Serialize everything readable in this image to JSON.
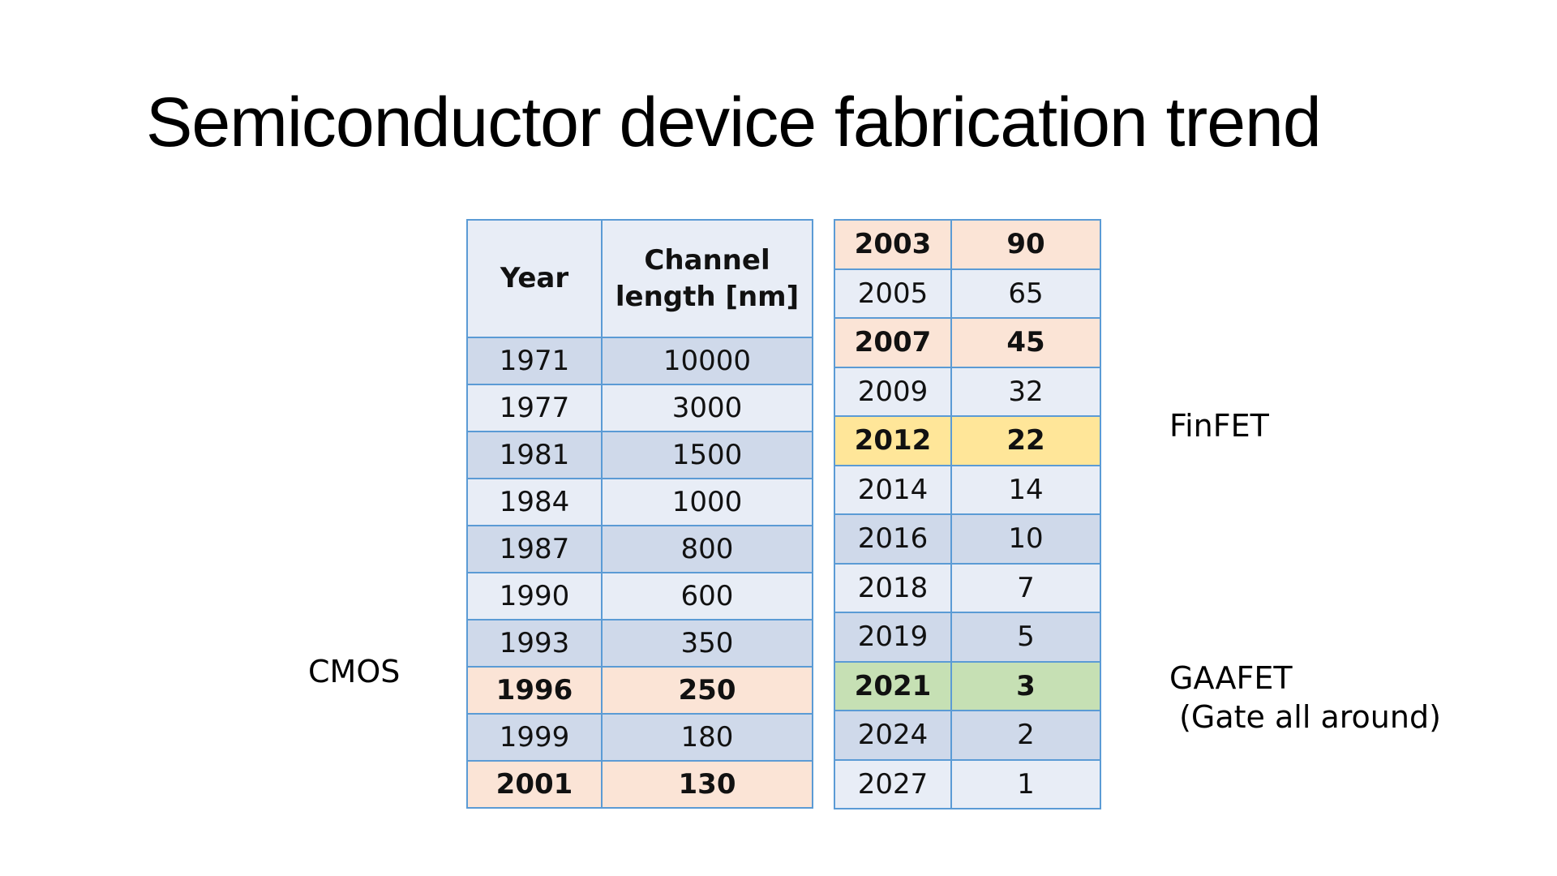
{
  "title": "Semiconductor device fabrication trend",
  "left_table": {
    "headers": [
      "Year",
      "Channel length [nm]"
    ],
    "rows": [
      {
        "year": "1971",
        "length": "10000",
        "highlight": "none"
      },
      {
        "year": "1977",
        "length": "3000",
        "highlight": "none"
      },
      {
        "year": "1981",
        "length": "1500",
        "highlight": "none"
      },
      {
        "year": "1984",
        "length": "1000",
        "highlight": "none"
      },
      {
        "year": "1987",
        "length": "800",
        "highlight": "none"
      },
      {
        "year": "1990",
        "length": "600",
        "highlight": "none"
      },
      {
        "year": "1993",
        "length": "350",
        "highlight": "none"
      },
      {
        "year": "1996",
        "length": "250",
        "highlight": "peach"
      },
      {
        "year": "1999",
        "length": "180",
        "highlight": "none"
      },
      {
        "year": "2001",
        "length": "130",
        "highlight": "peach"
      }
    ]
  },
  "right_table": {
    "rows": [
      {
        "year": "2003",
        "length": "90",
        "highlight": "peach"
      },
      {
        "year": "2005",
        "length": "65",
        "highlight": "none"
      },
      {
        "year": "2007",
        "length": "45",
        "highlight": "peach"
      },
      {
        "year": "2009",
        "length": "32",
        "highlight": "none"
      },
      {
        "year": "2012",
        "length": "22",
        "highlight": "yellow"
      },
      {
        "year": "2014",
        "length": "14",
        "highlight": "none"
      },
      {
        "year": "2016",
        "length": "10",
        "highlight": "none"
      },
      {
        "year": "2018",
        "length": "7",
        "highlight": "none"
      },
      {
        "year": "2019",
        "length": "5",
        "highlight": "none"
      },
      {
        "year": "2021",
        "length": "3",
        "highlight": "green"
      },
      {
        "year": "2024",
        "length": "2",
        "highlight": "none"
      },
      {
        "year": "2027",
        "length": "1",
        "highlight": "none"
      }
    ]
  },
  "labels": {
    "cmos": "CMOS",
    "finfet": "FinFET",
    "gaafet_line1": "GAAFET",
    "gaafet_line2": " (Gate all around)"
  },
  "colors": {
    "border": "#5b9bd5",
    "row_dark": "#cfd9ea",
    "row_light": "#e8edf6",
    "highlight_peach": "#fbe4d6",
    "highlight_yellow": "#ffe699",
    "highlight_green": "#c6e0b4"
  }
}
